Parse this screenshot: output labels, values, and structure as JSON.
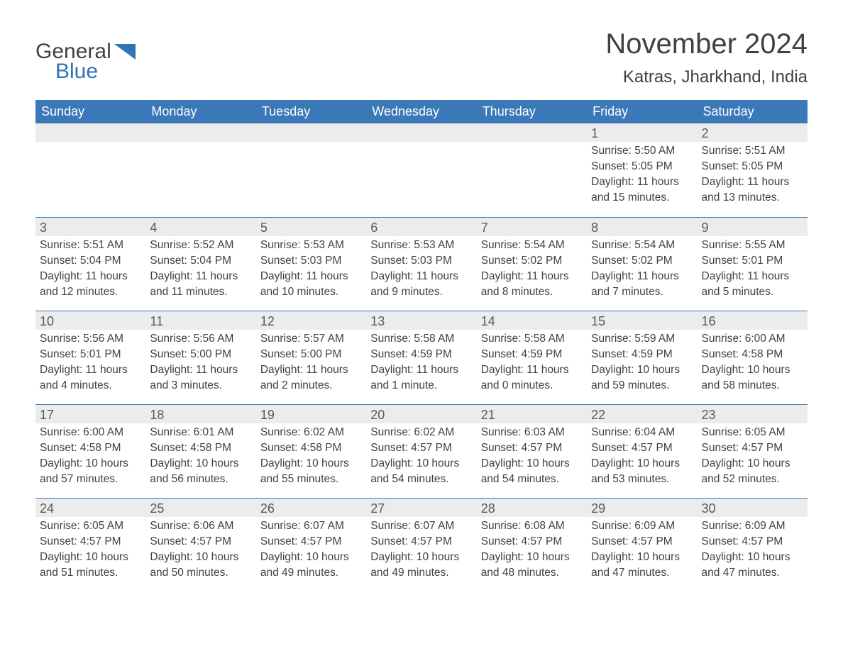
{
  "logo": {
    "word1": "General",
    "word2": "Blue",
    "shape_color": "#2f74b5"
  },
  "title": "November 2024",
  "location": "Katras, Jharkhand, India",
  "colors": {
    "header_bg": "#3b78b8",
    "header_text": "#ffffff",
    "daynum_bg": "#ececec",
    "text": "#414141",
    "rule": "#3b78b8",
    "background": "#ffffff"
  },
  "typography": {
    "title_fontsize": 40,
    "location_fontsize": 24,
    "dow_fontsize": 18,
    "daynum_fontsize": 18,
    "body_fontsize": 15.5
  },
  "days_of_week": [
    "Sunday",
    "Monday",
    "Tuesday",
    "Wednesday",
    "Thursday",
    "Friday",
    "Saturday"
  ],
  "weeks": [
    [
      {
        "empty": true
      },
      {
        "empty": true
      },
      {
        "empty": true
      },
      {
        "empty": true
      },
      {
        "empty": true
      },
      {
        "n": "1",
        "sunrise": "Sunrise: 5:50 AM",
        "sunset": "Sunset: 5:05 PM",
        "d1": "Daylight: 11 hours",
        "d2": "and 15 minutes."
      },
      {
        "n": "2",
        "sunrise": "Sunrise: 5:51 AM",
        "sunset": "Sunset: 5:05 PM",
        "d1": "Daylight: 11 hours",
        "d2": "and 13 minutes."
      }
    ],
    [
      {
        "n": "3",
        "sunrise": "Sunrise: 5:51 AM",
        "sunset": "Sunset: 5:04 PM",
        "d1": "Daylight: 11 hours",
        "d2": "and 12 minutes."
      },
      {
        "n": "4",
        "sunrise": "Sunrise: 5:52 AM",
        "sunset": "Sunset: 5:04 PM",
        "d1": "Daylight: 11 hours",
        "d2": "and 11 minutes."
      },
      {
        "n": "5",
        "sunrise": "Sunrise: 5:53 AM",
        "sunset": "Sunset: 5:03 PM",
        "d1": "Daylight: 11 hours",
        "d2": "and 10 minutes."
      },
      {
        "n": "6",
        "sunrise": "Sunrise: 5:53 AM",
        "sunset": "Sunset: 5:03 PM",
        "d1": "Daylight: 11 hours",
        "d2": "and 9 minutes."
      },
      {
        "n": "7",
        "sunrise": "Sunrise: 5:54 AM",
        "sunset": "Sunset: 5:02 PM",
        "d1": "Daylight: 11 hours",
        "d2": "and 8 minutes."
      },
      {
        "n": "8",
        "sunrise": "Sunrise: 5:54 AM",
        "sunset": "Sunset: 5:02 PM",
        "d1": "Daylight: 11 hours",
        "d2": "and 7 minutes."
      },
      {
        "n": "9",
        "sunrise": "Sunrise: 5:55 AM",
        "sunset": "Sunset: 5:01 PM",
        "d1": "Daylight: 11 hours",
        "d2": "and 5 minutes."
      }
    ],
    [
      {
        "n": "10",
        "sunrise": "Sunrise: 5:56 AM",
        "sunset": "Sunset: 5:01 PM",
        "d1": "Daylight: 11 hours",
        "d2": "and 4 minutes."
      },
      {
        "n": "11",
        "sunrise": "Sunrise: 5:56 AM",
        "sunset": "Sunset: 5:00 PM",
        "d1": "Daylight: 11 hours",
        "d2": "and 3 minutes."
      },
      {
        "n": "12",
        "sunrise": "Sunrise: 5:57 AM",
        "sunset": "Sunset: 5:00 PM",
        "d1": "Daylight: 11 hours",
        "d2": "and 2 minutes."
      },
      {
        "n": "13",
        "sunrise": "Sunrise: 5:58 AM",
        "sunset": "Sunset: 4:59 PM",
        "d1": "Daylight: 11 hours",
        "d2": "and 1 minute."
      },
      {
        "n": "14",
        "sunrise": "Sunrise: 5:58 AM",
        "sunset": "Sunset: 4:59 PM",
        "d1": "Daylight: 11 hours",
        "d2": "and 0 minutes."
      },
      {
        "n": "15",
        "sunrise": "Sunrise: 5:59 AM",
        "sunset": "Sunset: 4:59 PM",
        "d1": "Daylight: 10 hours",
        "d2": "and 59 minutes."
      },
      {
        "n": "16",
        "sunrise": "Sunrise: 6:00 AM",
        "sunset": "Sunset: 4:58 PM",
        "d1": "Daylight: 10 hours",
        "d2": "and 58 minutes."
      }
    ],
    [
      {
        "n": "17",
        "sunrise": "Sunrise: 6:00 AM",
        "sunset": "Sunset: 4:58 PM",
        "d1": "Daylight: 10 hours",
        "d2": "and 57 minutes."
      },
      {
        "n": "18",
        "sunrise": "Sunrise: 6:01 AM",
        "sunset": "Sunset: 4:58 PM",
        "d1": "Daylight: 10 hours",
        "d2": "and 56 minutes."
      },
      {
        "n": "19",
        "sunrise": "Sunrise: 6:02 AM",
        "sunset": "Sunset: 4:58 PM",
        "d1": "Daylight: 10 hours",
        "d2": "and 55 minutes."
      },
      {
        "n": "20",
        "sunrise": "Sunrise: 6:02 AM",
        "sunset": "Sunset: 4:57 PM",
        "d1": "Daylight: 10 hours",
        "d2": "and 54 minutes."
      },
      {
        "n": "21",
        "sunrise": "Sunrise: 6:03 AM",
        "sunset": "Sunset: 4:57 PM",
        "d1": "Daylight: 10 hours",
        "d2": "and 54 minutes."
      },
      {
        "n": "22",
        "sunrise": "Sunrise: 6:04 AM",
        "sunset": "Sunset: 4:57 PM",
        "d1": "Daylight: 10 hours",
        "d2": "and 53 minutes."
      },
      {
        "n": "23",
        "sunrise": "Sunrise: 6:05 AM",
        "sunset": "Sunset: 4:57 PM",
        "d1": "Daylight: 10 hours",
        "d2": "and 52 minutes."
      }
    ],
    [
      {
        "n": "24",
        "sunrise": "Sunrise: 6:05 AM",
        "sunset": "Sunset: 4:57 PM",
        "d1": "Daylight: 10 hours",
        "d2": "and 51 minutes."
      },
      {
        "n": "25",
        "sunrise": "Sunrise: 6:06 AM",
        "sunset": "Sunset: 4:57 PM",
        "d1": "Daylight: 10 hours",
        "d2": "and 50 minutes."
      },
      {
        "n": "26",
        "sunrise": "Sunrise: 6:07 AM",
        "sunset": "Sunset: 4:57 PM",
        "d1": "Daylight: 10 hours",
        "d2": "and 49 minutes."
      },
      {
        "n": "27",
        "sunrise": "Sunrise: 6:07 AM",
        "sunset": "Sunset: 4:57 PM",
        "d1": "Daylight: 10 hours",
        "d2": "and 49 minutes."
      },
      {
        "n": "28",
        "sunrise": "Sunrise: 6:08 AM",
        "sunset": "Sunset: 4:57 PM",
        "d1": "Daylight: 10 hours",
        "d2": "and 48 minutes."
      },
      {
        "n": "29",
        "sunrise": "Sunrise: 6:09 AM",
        "sunset": "Sunset: 4:57 PM",
        "d1": "Daylight: 10 hours",
        "d2": "and 47 minutes."
      },
      {
        "n": "30",
        "sunrise": "Sunrise: 6:09 AM",
        "sunset": "Sunset: 4:57 PM",
        "d1": "Daylight: 10 hours",
        "d2": "and 47 minutes."
      }
    ]
  ]
}
